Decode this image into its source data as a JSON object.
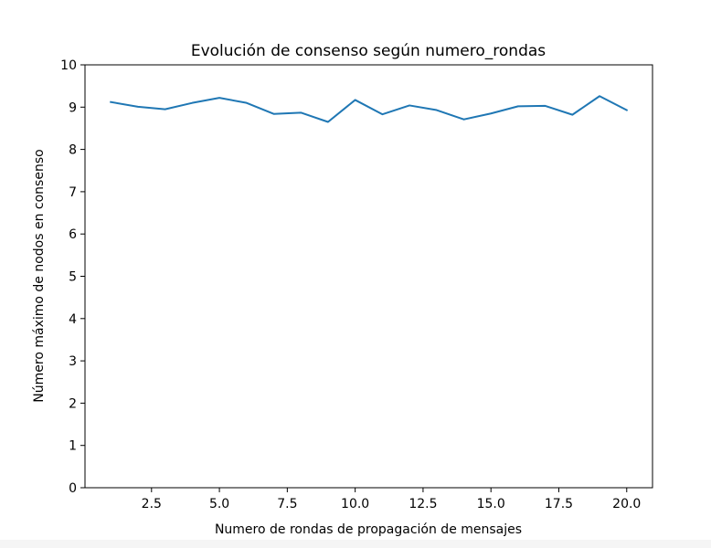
{
  "chart_data": {
    "type": "line",
    "title": "Evolución de consenso según numero_rondas",
    "xlabel": "Numero de rondas de propagación de mensajes",
    "ylabel": "Número máximo de nodos en consenso",
    "xlim": [
      0.05,
      20.95
    ],
    "ylim": [
      0,
      10
    ],
    "xticks": [
      2.5,
      5.0,
      7.5,
      10.0,
      12.5,
      15.0,
      17.5,
      20.0
    ],
    "xtick_labels": [
      "2.5",
      "5.0",
      "7.5",
      "10.0",
      "12.5",
      "15.0",
      "17.5",
      "20.0"
    ],
    "yticks": [
      0,
      1,
      2,
      3,
      4,
      5,
      6,
      7,
      8,
      9,
      10
    ],
    "ytick_labels": [
      "0",
      "1",
      "2",
      "3",
      "4",
      "5",
      "6",
      "7",
      "8",
      "9",
      "10"
    ],
    "grid": false,
    "series": [
      {
        "color": "#1f77b4",
        "x": [
          1,
          2,
          3,
          4,
          5,
          6,
          7,
          8,
          9,
          10,
          11,
          12,
          13,
          14,
          15,
          16,
          17,
          18,
          19,
          20
        ],
        "y": [
          9.12,
          9.01,
          8.95,
          9.1,
          9.22,
          9.1,
          8.84,
          8.87,
          8.65,
          9.17,
          8.83,
          9.04,
          8.93,
          8.71,
          8.85,
          9.02,
          9.03,
          8.82,
          9.26,
          8.93
        ]
      }
    ]
  }
}
